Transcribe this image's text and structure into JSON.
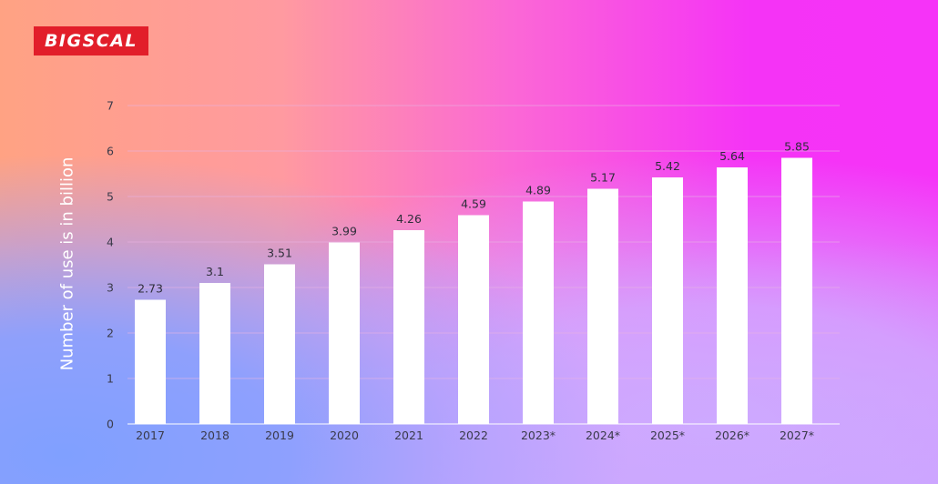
{
  "logo": {
    "text": "BIGSCAL"
  },
  "colors": {
    "bar": "#ffffff",
    "gridline": "#e8b3e3",
    "text": "#3a3a4a",
    "logo_bg": "#e21e2a"
  },
  "chart_data": {
    "type": "bar",
    "title": "",
    "xlabel": "",
    "ylabel": "Number of use is in billion",
    "categories": [
      "2017",
      "2018",
      "2019",
      "2020",
      "2021",
      "2022",
      "2023*",
      "2024*",
      "2025*",
      "2026*",
      "2027*"
    ],
    "values": [
      2.73,
      3.1,
      3.51,
      3.99,
      4.26,
      4.59,
      4.89,
      5.17,
      5.42,
      5.64,
      5.85
    ],
    "value_labels": [
      "2.73",
      "3.1",
      "3.51",
      "3.99",
      "4.26",
      "4.59",
      "4.89",
      "5.17",
      "5.42",
      "5.64",
      "5.85"
    ],
    "yticks": [
      "0",
      "1",
      "2",
      "3",
      "4",
      "5",
      "6",
      "7"
    ],
    "ylim": [
      0,
      7
    ],
    "grid": true,
    "legend": "none"
  }
}
